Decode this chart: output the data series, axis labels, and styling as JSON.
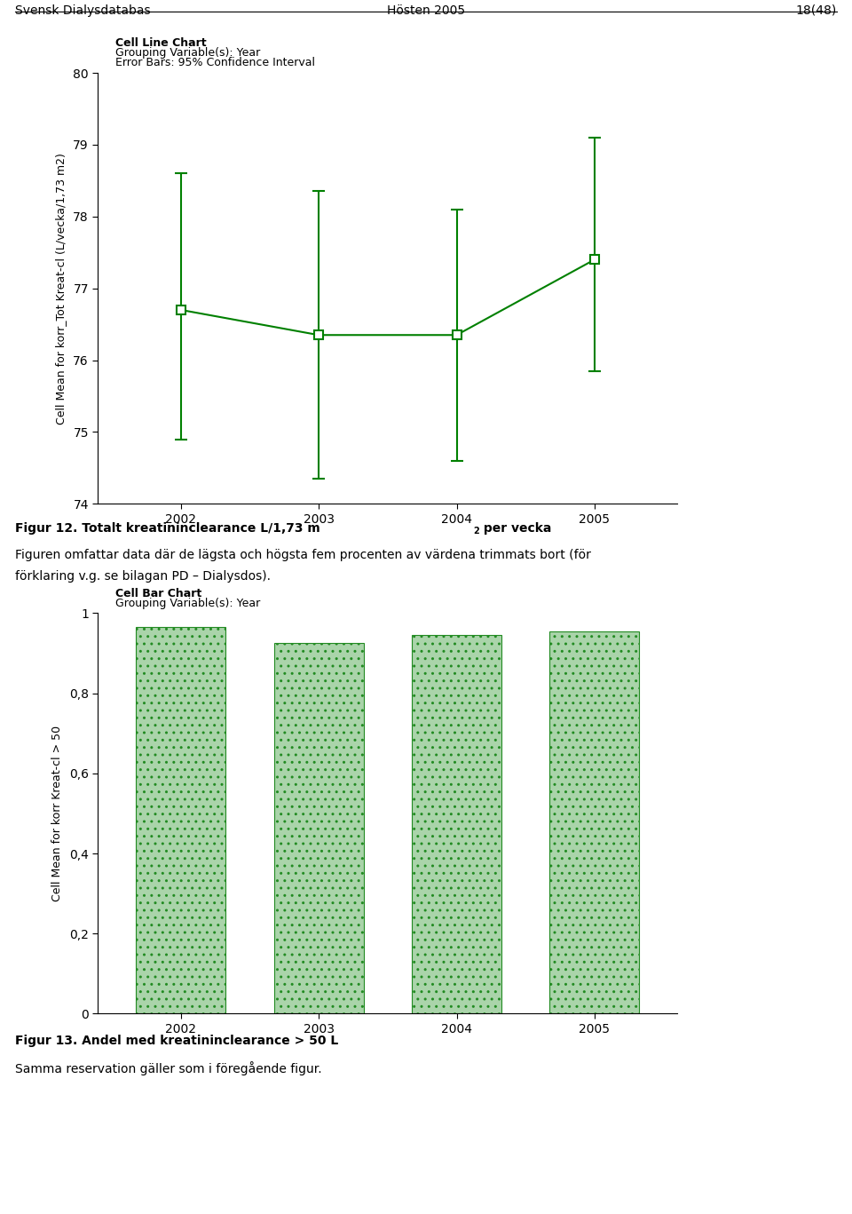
{
  "header_left": "Svensk Dialysdatabas",
  "header_center": "Hösten 2005",
  "header_right": "18(48)",
  "line_chart": {
    "title_line1": "Cell Line Chart",
    "title_line2": "Grouping Variable(s): Year",
    "title_line3": "Error Bars: 95% Confidence Interval",
    "years": [
      2002,
      2003,
      2004,
      2005
    ],
    "means": [
      76.7,
      76.35,
      76.35,
      77.4
    ],
    "ci_lower": [
      74.9,
      74.35,
      74.6,
      75.85
    ],
    "ci_upper": [
      78.6,
      78.35,
      78.1,
      79.1
    ],
    "ylabel": "Cell Mean for korr_Tot Kreat-cl (L/vecka/1,73 m2)",
    "ylim": [
      74,
      80
    ],
    "yticks": [
      74,
      75,
      76,
      77,
      78,
      79,
      80
    ],
    "color": "#008000"
  },
  "bar_chart": {
    "title_line1": "Cell Bar Chart",
    "title_line2": "Grouping Variable(s): Year",
    "years": [
      2002,
      2003,
      2004,
      2005
    ],
    "values": [
      0.965,
      0.925,
      0.945,
      0.955
    ],
    "ylabel": "Cell Mean for korr Kreat-cl > 50",
    "ylim": [
      0,
      1
    ],
    "yticks": [
      0,
      0.2,
      0.4,
      0.6,
      0.8,
      1
    ],
    "yticklabels": [
      "0",
      "0,2",
      "0,4",
      "0,6",
      "0,8",
      "1"
    ],
    "bar_color": "#aad4aa",
    "hatch": "..",
    "edgecolor": "#228B22"
  },
  "fig12_bold": "Figur 12. Totalt kreatininclearance L/1,73 m",
  "fig12_super": "2",
  "fig12_end": " per vecka",
  "fig12_normal1": "Figuren omfattar data där de lägsta och högsta fem procenten av värdena trimmats bort (för",
  "fig12_normal2": "förklaring v.g. se bilagan PD – Dialysdos).",
  "fig13_bold": "Figur 13. Andel med kreatininclearance > 50 L",
  "fig13_normal": "Samma reservation gäller som i föregående figur.",
  "background_color": "#ffffff"
}
